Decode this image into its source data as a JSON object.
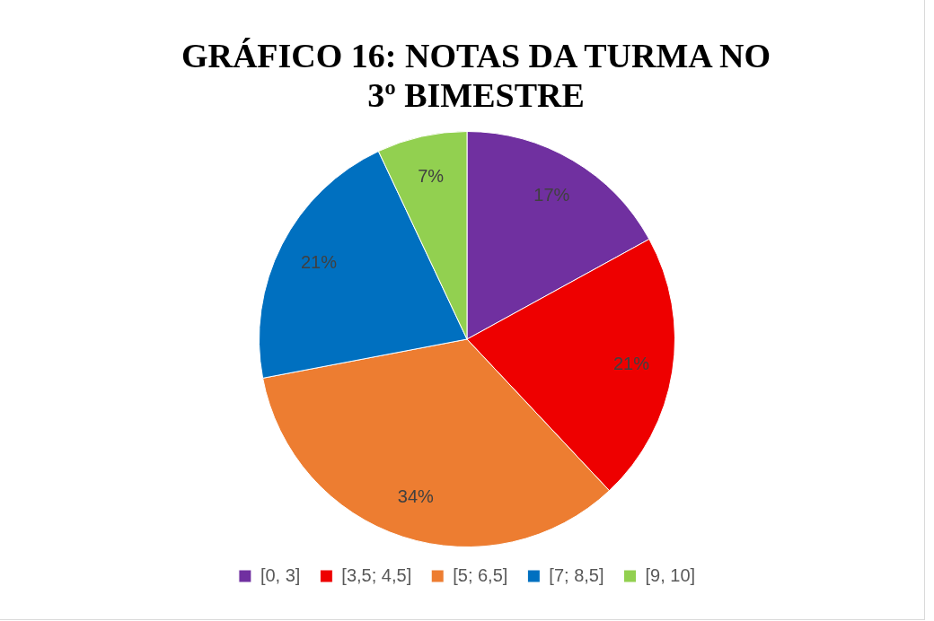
{
  "chart_data": {
    "type": "pie",
    "title": "GRÁFICO 16: NOTAS DA TURMA NO 3º BIMESTRE",
    "categories": [
      "[0, 3]",
      "[3,5; 4,5]",
      "[5; 6,5]",
      "[7; 8,5]",
      "[9, 10]"
    ],
    "values": [
      17,
      21,
      34,
      21,
      7
    ],
    "colors": [
      "#7030a0",
      "#ee0000",
      "#ed7d31",
      "#0070c0",
      "#92d050"
    ],
    "value_labels": [
      "17%",
      "21%",
      "34%",
      "21%",
      "7%"
    ],
    "legend": "bottom"
  }
}
